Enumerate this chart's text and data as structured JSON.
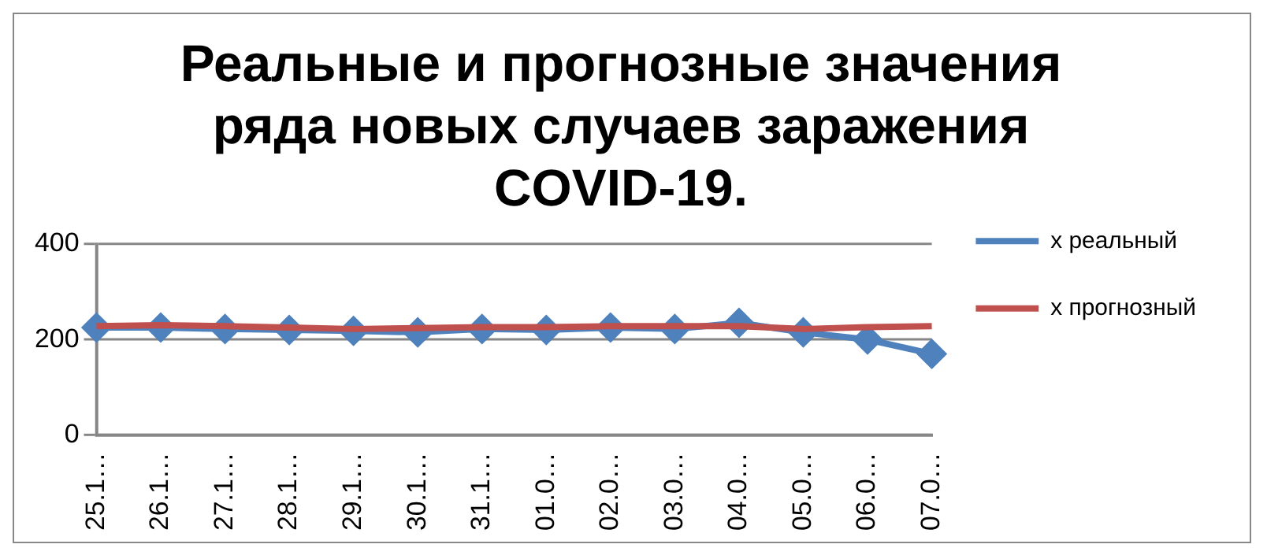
{
  "chart_data": {
    "type": "line",
    "title": "Реальные и прогнозные значения ряда новых случаев заражения COVID-19.",
    "categories": [
      "25.1…",
      "26.1…",
      "27.1…",
      "28.1…",
      "29.1…",
      "30.1…",
      "31.1…",
      "01.0…",
      "02.0…",
      "03.0…",
      "04.0…",
      "05.0…",
      "06.0…",
      "07.0…"
    ],
    "series": [
      {
        "name": "x реальный",
        "color": "#4f81bd",
        "marker": "diamond",
        "values": [
          225,
          225,
          222,
          220,
          218,
          215,
          222,
          220,
          225,
          222,
          235,
          215,
          200,
          170
        ]
      },
      {
        "name": "x прогнозный",
        "color": "#c0504d",
        "marker": "none",
        "values": [
          228,
          230,
          228,
          225,
          222,
          224,
          226,
          226,
          228,
          228,
          228,
          222,
          226,
          228
        ]
      }
    ],
    "ylim": [
      0,
      400
    ],
    "yticks": [
      0,
      200,
      400
    ],
    "grid": "y",
    "legend": "right"
  }
}
